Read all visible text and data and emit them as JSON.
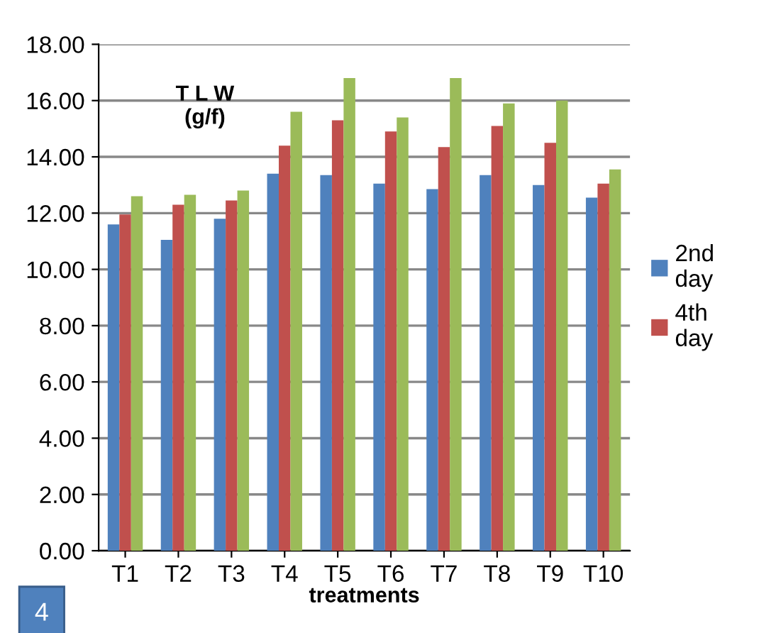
{
  "chart_data": {
    "type": "bar",
    "title": "T L W\n(g/f)",
    "xlabel": "treatments",
    "categories": [
      "T1",
      "T2",
      "T3",
      "T4",
      "T5",
      "T6",
      "T7",
      "T8",
      "T9",
      "T10"
    ],
    "series": [
      {
        "name": "2nd day",
        "color": "#4f81bd",
        "values": [
          11.6,
          11.05,
          11.8,
          13.4,
          13.35,
          13.05,
          12.85,
          13.35,
          13.0,
          12.55
        ]
      },
      {
        "name": "4th day",
        "color": "#c0504d",
        "values": [
          11.95,
          12.3,
          12.45,
          14.4,
          15.3,
          14.9,
          14.35,
          15.1,
          14.5,
          13.05
        ]
      },
      {
        "color": "#9bbb59",
        "values": [
          12.6,
          12.65,
          12.8,
          15.6,
          16.8,
          15.4,
          16.8,
          15.9,
          16.0,
          13.55
        ]
      }
    ],
    "ylim": [
      0,
      18
    ],
    "yticks": [
      {
        "value": 0,
        "label": "0.00"
      },
      {
        "value": 2,
        "label": "2.00"
      },
      {
        "value": 4,
        "label": "4.00"
      },
      {
        "value": 6,
        "label": "6.00"
      },
      {
        "value": 8,
        "label": "8.00"
      },
      {
        "value": 10,
        "label": "10.00"
      },
      {
        "value": 12,
        "label": "12.00"
      },
      {
        "value": 14,
        "label": "14.00"
      },
      {
        "value": 16,
        "label": "16.00"
      },
      {
        "value": 18,
        "label": "18.00"
      }
    ],
    "grid": "y",
    "legend": "right",
    "annotations": [
      "4"
    ]
  }
}
